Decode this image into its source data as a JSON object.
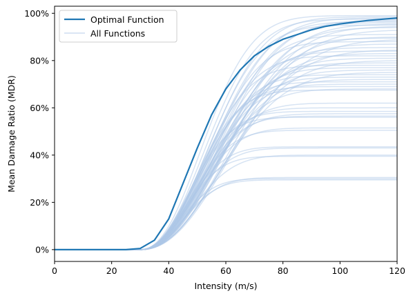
{
  "chart_data": {
    "type": "line",
    "title": "",
    "xlabel": "Intensity (m/s)",
    "ylabel": "Mean Damage Ratio (MDR)",
    "xlim": [
      0,
      120
    ],
    "ylim": [
      -0.05,
      1.03
    ],
    "x_ticks": [
      0,
      20,
      40,
      60,
      80,
      100,
      120
    ],
    "x_tick_labels": [
      "0",
      "20",
      "40",
      "60",
      "80",
      "100",
      "120"
    ],
    "y_ticks": [
      0,
      0.2,
      0.4,
      0.6,
      0.8,
      1.0
    ],
    "y_tick_labels": [
      "0%",
      "20%",
      "40%",
      "60%",
      "80%",
      "100%"
    ],
    "grid": false,
    "legend_position": "top-left",
    "legend": [
      {
        "label": "Optimal Function",
        "color": "#1f77b4"
      },
      {
        "label": "All Functions",
        "color": "#aec7e8"
      }
    ],
    "optimal": {
      "name": "Optimal Function",
      "color": "#1f77b4",
      "x": [
        0,
        5,
        10,
        15,
        20,
        25,
        30,
        35,
        40,
        45,
        50,
        55,
        60,
        65,
        70,
        75,
        80,
        85,
        90,
        95,
        100,
        105,
        110,
        115,
        120
      ],
      "y": [
        0,
        0,
        0,
        0,
        0,
        0,
        0.005,
        0.04,
        0.13,
        0.28,
        0.43,
        0.57,
        0.68,
        0.76,
        0.82,
        0.86,
        0.89,
        0.91,
        0.93,
        0.945,
        0.955,
        0.963,
        0.97,
        0.975,
        0.98
      ]
    },
    "all_functions": {
      "name": "All Functions",
      "color": "#aec7e8",
      "threshold": 30,
      "plateaus": [
        0.99,
        0.985,
        0.98,
        0.975,
        0.97,
        0.965,
        0.96,
        0.955,
        0.95,
        0.945,
        0.94,
        0.93,
        0.91,
        0.9,
        0.895,
        0.89,
        0.88,
        0.87,
        0.855,
        0.845,
        0.84,
        0.83,
        0.82,
        0.81,
        0.8,
        0.79,
        0.78,
        0.77,
        0.76,
        0.75,
        0.74,
        0.73,
        0.72,
        0.71,
        0.7,
        0.69,
        0.68,
        0.675,
        0.62,
        0.6,
        0.585,
        0.575,
        0.565,
        0.56,
        0.515,
        0.505,
        0.435,
        0.43,
        0.4,
        0.395,
        0.305,
        0.3,
        0.295
      ],
      "rates": [
        0.08,
        0.072,
        0.068,
        0.076,
        0.064,
        0.07,
        0.066,
        0.06,
        0.074,
        0.058,
        0.062,
        0.056,
        0.07,
        0.06,
        0.065,
        0.055,
        0.075,
        0.062,
        0.068,
        0.058,
        0.072,
        0.064,
        0.078,
        0.066,
        0.06,
        0.07,
        0.082,
        0.074,
        0.068,
        0.062,
        0.08,
        0.076,
        0.07,
        0.084,
        0.078,
        0.086,
        0.074,
        0.09,
        0.082,
        0.088,
        0.094,
        0.086,
        0.09,
        0.1,
        0.092,
        0.098,
        0.105,
        0.1,
        0.095,
        0.11,
        0.11,
        0.12,
        0.115
      ]
    }
  }
}
